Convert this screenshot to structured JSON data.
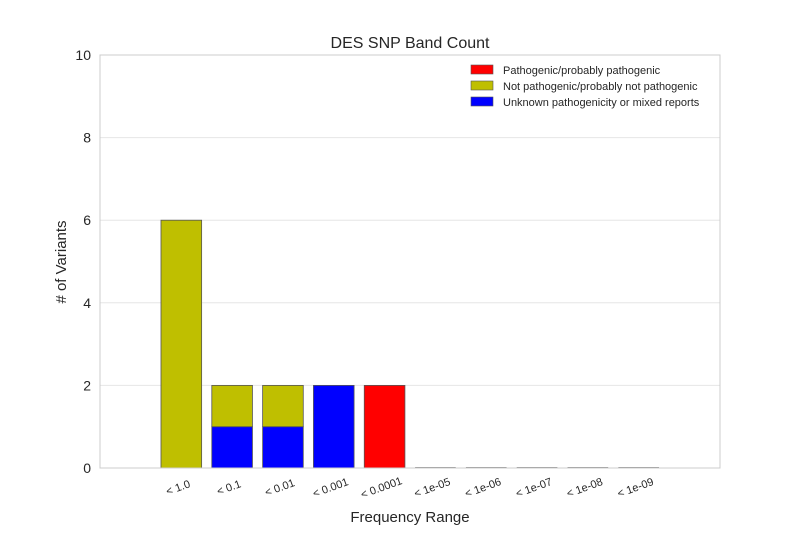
{
  "chart_data": {
    "type": "bar",
    "stacked": true,
    "title": "DES SNP Band Count",
    "xlabel": "Frequency Range",
    "ylabel": "# of Variants",
    "ylim": [
      0,
      10
    ],
    "yticks": [
      0,
      2,
      4,
      6,
      8,
      10
    ],
    "grid": true,
    "legend_position": "top-right",
    "categories": [
      "< 1.0",
      "< 0.1",
      "< 0.01",
      "< 0.001",
      "< 0.0001",
      "< 1e-05",
      "< 1e-06",
      "< 1e-07",
      "< 1e-08",
      "< 1e-09"
    ],
    "series": [
      {
        "name": "Unknown pathogenicity or mixed reports",
        "color": "#0000ff",
        "values": [
          0,
          1,
          1,
          2,
          0,
          0,
          0,
          0,
          0,
          0
        ]
      },
      {
        "name": "Not pathogenic/probably not pathogenic",
        "color": "#bfbf00",
        "values": [
          6,
          1,
          1,
          0,
          0,
          0,
          0,
          0,
          0,
          0
        ]
      },
      {
        "name": "Pathogenic/probably pathogenic",
        "color": "#ff0000",
        "values": [
          0,
          0,
          0,
          0,
          2,
          0,
          0,
          0,
          0,
          0
        ]
      }
    ],
    "legend_order": [
      "Pathogenic/probably pathogenic",
      "Not pathogenic/probably not pathogenic",
      "Unknown pathogenicity or mixed reports"
    ]
  }
}
